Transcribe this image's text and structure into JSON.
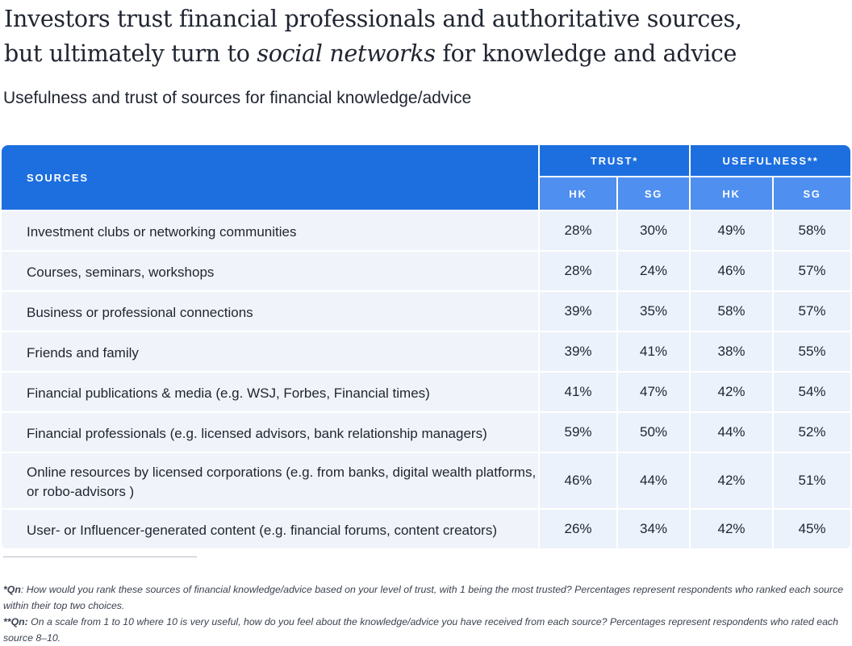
{
  "title": {
    "part1": "Investors trust financial professionals and authoritative sources,",
    "part2": "but ultimately turn to ",
    "emphasis": "social networks",
    "part3": " for knowledge and advice"
  },
  "subtitle": "Usefulness and trust of sources for financial knowledge/advice",
  "table": {
    "sources_header": "SOURCES",
    "trust_header": "TRUST*",
    "usefulness_header": "USEFULNESS**",
    "sub_headers": [
      "HK",
      "SG",
      "HK",
      "SG"
    ],
    "rows": [
      {
        "source": "Investment clubs or networking communities",
        "trust_hk": "28%",
        "trust_sg": "30%",
        "use_hk": "49%",
        "use_sg": "58%"
      },
      {
        "source": "Courses, seminars, workshops",
        "trust_hk": "28%",
        "trust_sg": "24%",
        "use_hk": "46%",
        "use_sg": "57%"
      },
      {
        "source": "Business or professional connections",
        "trust_hk": "39%",
        "trust_sg": "35%",
        "use_hk": "58%",
        "use_sg": "57%"
      },
      {
        "source": "Friends and family",
        "trust_hk": "39%",
        "trust_sg": "41%",
        "use_hk": "38%",
        "use_sg": "55%"
      },
      {
        "source": "Financial publications & media (e.g. WSJ, Forbes, Financial times)",
        "trust_hk": "41%",
        "trust_sg": "47%",
        "use_hk": "42%",
        "use_sg": "54%"
      },
      {
        "source": "Financial professionals (e.g. licensed advisors, bank relationship managers)",
        "trust_hk": "59%",
        "trust_sg": "50%",
        "use_hk": "44%",
        "use_sg": "52%"
      },
      {
        "source": "Online resources by licensed corporations (e.g. from banks, digital wealth platforms, or robo-advisors )",
        "trust_hk": "46%",
        "trust_sg": "44%",
        "use_hk": "42%",
        "use_sg": "51%"
      },
      {
        "source": "User- or Influencer-generated content (e.g. financial forums, content creators)",
        "trust_hk": "26%",
        "trust_sg": "34%",
        "use_hk": "42%",
        "use_sg": "45%"
      }
    ]
  },
  "footnotes": {
    "note1_label": "*Qn",
    "note1_text": ": How would you rank these sources of financial knowledge/advice based on your level of trust, with 1 being the most trusted? Percentages represent respondents who ranked each source within their top two choices.",
    "note2_label": "**Qn:",
    "note2_text": " On a scale from 1 to 10 where 10 is very useful, how do you feel about the knowledge/advice you have received from each source? Percentages represent respondents who rated each source 8–10."
  },
  "colors": {
    "header_blue": "#1d6fe0",
    "subheader_blue": "#4f8ff0",
    "row_background": "#f0f4fa"
  }
}
